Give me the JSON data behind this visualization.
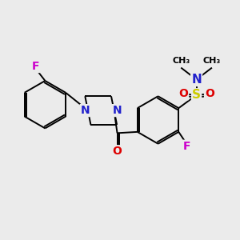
{
  "background_color": "#ebebeb",
  "bond_color": "#000000",
  "colors": {
    "N": "#2020cc",
    "O": "#dd0000",
    "F": "#cc00cc",
    "S": "#cccc00",
    "C": "#000000"
  },
  "figsize": [
    3.0,
    3.0
  ],
  "dpi": 100
}
